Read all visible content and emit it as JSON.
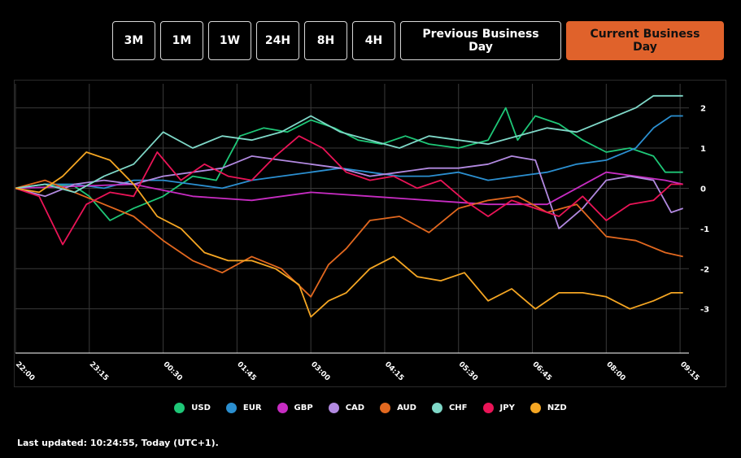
{
  "tabs": [
    {
      "label": "3M",
      "active": false
    },
    {
      "label": "1M",
      "active": false
    },
    {
      "label": "1W",
      "active": false
    },
    {
      "label": "24H",
      "active": false
    },
    {
      "label": "8H",
      "active": false
    },
    {
      "label": "4H",
      "active": false
    },
    {
      "label": "Previous Business Day",
      "active": false
    },
    {
      "label": "Current Business Day",
      "active": true
    }
  ],
  "last_updated": "Last updated: 10:24:55, Today (UTC+1).",
  "colors": {
    "accent": "#e0622b",
    "grid": "#3a3a3a",
    "axis": "#ffffff"
  },
  "chart_data": {
    "type": "line",
    "x_tick_labels": [
      "22:00",
      "23:15",
      "00:30",
      "01:45",
      "03:00",
      "04:15",
      "05:30",
      "06:45",
      "08:00",
      "09:15"
    ],
    "x_ticks_hours": [
      0,
      1.25,
      2.5,
      3.75,
      5,
      6.25,
      7.5,
      8.75,
      10,
      11.25
    ],
    "x_range_hours": [
      0,
      11.4
    ],
    "ylim": [
      -4.1,
      2.6
    ],
    "y_ticks": [
      2,
      1,
      0,
      -1,
      -2,
      -3
    ],
    "grid": true,
    "legend_position": "bottom-center",
    "series": [
      {
        "name": "USD",
        "color": "#1ec777",
        "x_hours": [
          0,
          0.5,
          1,
          1.25,
          1.6,
          2,
          2.5,
          3,
          3.4,
          3.8,
          4.2,
          4.6,
          5,
          5.4,
          5.8,
          6.2,
          6.6,
          7,
          7.5,
          8,
          8.3,
          8.5,
          8.8,
          9.2,
          9.6,
          10,
          10.4,
          10.8,
          11,
          11.3
        ],
        "values": [
          0,
          0.1,
          0.05,
          -0.2,
          -0.8,
          -0.5,
          -0.2,
          0.3,
          0.2,
          1.3,
          1.5,
          1.4,
          1.7,
          1.5,
          1.2,
          1.1,
          1.3,
          1.1,
          1.0,
          1.2,
          2.0,
          1.2,
          1.8,
          1.6,
          1.2,
          0.9,
          1.0,
          0.8,
          0.4,
          0.4
        ]
      },
      {
        "name": "EUR",
        "color": "#2b8fd0",
        "x_hours": [
          0,
          0.5,
          1,
          1.5,
          2,
          2.5,
          3,
          3.5,
          4,
          4.5,
          5,
          5.5,
          6,
          6.5,
          7,
          7.5,
          8,
          8.5,
          9,
          9.5,
          10,
          10.5,
          10.8,
          11.1,
          11.3
        ],
        "values": [
          0,
          0.1,
          0.1,
          0.0,
          0.2,
          0.2,
          0.1,
          0.0,
          0.2,
          0.3,
          0.4,
          0.5,
          0.4,
          0.3,
          0.3,
          0.4,
          0.2,
          0.3,
          0.4,
          0.6,
          0.7,
          1.0,
          1.5,
          1.8,
          1.8
        ]
      },
      {
        "name": "GBP",
        "color": "#c72cc2",
        "x_hours": [
          0,
          1,
          2,
          3,
          4,
          5,
          6,
          7,
          8,
          9,
          10,
          10.5,
          11,
          11.3
        ],
        "values": [
          0,
          0.05,
          0.1,
          -0.2,
          -0.3,
          -0.1,
          -0.2,
          -0.3,
          -0.4,
          -0.4,
          0.4,
          0.3,
          0.2,
          0.1
        ]
      },
      {
        "name": "CAD",
        "color": "#b289e0",
        "x_hours": [
          0,
          0.5,
          1,
          1.5,
          2,
          2.5,
          3,
          3.5,
          4,
          4.5,
          5,
          5.5,
          6,
          6.5,
          7,
          7.5,
          8,
          8.4,
          8.8,
          9.2,
          9.6,
          10,
          10.4,
          10.8,
          11.1,
          11.3
        ],
        "values": [
          0,
          -0.2,
          0.1,
          0.2,
          0.1,
          0.3,
          0.4,
          0.5,
          0.8,
          0.7,
          0.6,
          0.5,
          0.3,
          0.4,
          0.5,
          0.5,
          0.6,
          0.8,
          0.7,
          -1.0,
          -0.5,
          0.2,
          0.3,
          0.2,
          -0.6,
          -0.5
        ]
      },
      {
        "name": "AUD",
        "color": "#e2681f",
        "x_hours": [
          0,
          0.5,
          1,
          1.5,
          2,
          2.5,
          3,
          3.5,
          4,
          4.5,
          5,
          5.3,
          5.6,
          6,
          6.5,
          7,
          7.5,
          8,
          8.5,
          9,
          9.5,
          10,
          10.5,
          11,
          11.3
        ],
        "values": [
          0,
          0.2,
          -0.1,
          -0.4,
          -0.7,
          -1.3,
          -1.8,
          -2.1,
          -1.7,
          -2.0,
          -2.7,
          -1.9,
          -1.5,
          -0.8,
          -0.7,
          -1.1,
          -0.5,
          -0.3,
          -0.2,
          -0.6,
          -0.4,
          -1.2,
          -1.3,
          -1.6,
          -1.7
        ]
      },
      {
        "name": "CHF",
        "color": "#7fd8c8",
        "x_hours": [
          0,
          0.5,
          1,
          1.5,
          2,
          2.5,
          3,
          3.5,
          4,
          4.5,
          5,
          5.5,
          6,
          6.5,
          7,
          7.5,
          8,
          8.5,
          9,
          9.5,
          10,
          10.5,
          10.8,
          11.1,
          11.3
        ],
        "values": [
          0,
          0.1,
          -0.1,
          0.3,
          0.6,
          1.4,
          1.0,
          1.3,
          1.2,
          1.4,
          1.8,
          1.4,
          1.2,
          1.0,
          1.3,
          1.2,
          1.1,
          1.3,
          1.5,
          1.4,
          1.7,
          2.0,
          2.3,
          2.3,
          2.3
        ]
      },
      {
        "name": "JPY",
        "color": "#ea1457",
        "x_hours": [
          0,
          0.4,
          0.8,
          1.2,
          1.6,
          2,
          2.4,
          2.8,
          3.2,
          3.6,
          4,
          4.4,
          4.8,
          5.2,
          5.6,
          6,
          6.4,
          6.8,
          7.2,
          7.6,
          8,
          8.4,
          8.8,
          9.2,
          9.6,
          10,
          10.4,
          10.8,
          11.1,
          11.3
        ],
        "values": [
          0,
          -0.2,
          -1.4,
          -0.4,
          -0.1,
          -0.2,
          0.9,
          0.2,
          0.6,
          0.3,
          0.2,
          0.8,
          1.3,
          1.0,
          0.4,
          0.2,
          0.3,
          0.0,
          0.2,
          -0.3,
          -0.7,
          -0.3,
          -0.5,
          -0.7,
          -0.2,
          -0.8,
          -0.4,
          -0.3,
          0.1,
          0.1
        ]
      },
      {
        "name": "NZD",
        "color": "#f5a623",
        "x_hours": [
          0,
          0.4,
          0.8,
          1.2,
          1.6,
          2,
          2.4,
          2.8,
          3.2,
          3.6,
          4,
          4.4,
          4.8,
          5,
          5.3,
          5.6,
          6,
          6.4,
          6.8,
          7.2,
          7.6,
          8,
          8.4,
          8.8,
          9.2,
          9.6,
          10,
          10.4,
          10.8,
          11.1,
          11.3
        ],
        "values": [
          0,
          -0.1,
          0.3,
          0.9,
          0.7,
          0.1,
          -0.7,
          -1.0,
          -1.6,
          -1.8,
          -1.8,
          -2.0,
          -2.4,
          -3.2,
          -2.8,
          -2.6,
          -2.0,
          -1.7,
          -2.2,
          -2.3,
          -2.1,
          -2.8,
          -2.5,
          -3.0,
          -2.6,
          -2.6,
          -2.7,
          -3.0,
          -2.8,
          -2.6,
          -2.6
        ]
      }
    ]
  }
}
